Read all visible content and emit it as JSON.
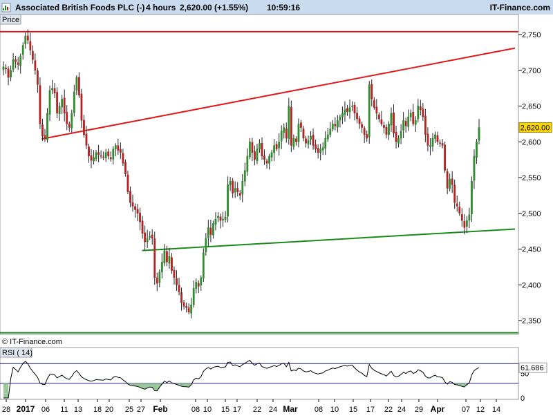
{
  "header": {
    "instrument": "Associated British Foods PLC (-)",
    "interval": "4 hours",
    "change": "2,620.00 (+1.55%)",
    "time": "10:59:16",
    "brand": "IT-Finance.com"
  },
  "panels": {
    "price_label": "Price",
    "copyright": "© IT-Finance.com",
    "rsi_label": "RSI ( 14)"
  },
  "colors": {
    "header_bg": "#c9dbee",
    "up_candle": "#2e8b2e",
    "down_candle": "#b22222",
    "resistance": "#e01818",
    "support": "#1a8a1a",
    "rsi_line": "#000000",
    "rsi_fill": "#9bc89b",
    "rsi_level": "#1a1a80",
    "last_price_tag": "#ffd700"
  },
  "chart_data": [
    {
      "type": "candlestick",
      "title": "Associated British Foods PLC (-)",
      "ylim": [
        2330,
        2770
      ],
      "y_ticks": [
        2350,
        2400,
        2450,
        2500,
        2550,
        2600,
        2650,
        2700,
        2750
      ],
      "y_tick_labels": [
        "2,350",
        "2,400",
        "2,450",
        "2,500",
        "2,550",
        "2,600",
        "2,650",
        "2,700",
        "2,750"
      ],
      "x_tick_labels": [
        "28",
        "2017",
        "06",
        "11",
        "13",
        "18",
        "20",
        "25",
        "27",
        "Feb",
        "08",
        "10",
        "15",
        "17",
        "22",
        "24",
        "Mar",
        "08",
        "10",
        "15",
        "17",
        "22",
        "24",
        "29",
        "Apr",
        "07",
        "12",
        "14"
      ],
      "last_price": 2620.0,
      "last_price_label": "2,620.00",
      "lines": [
        {
          "name": "resistance",
          "from": {
            "period": "2017-01-05",
            "value": 2604
          },
          "to": {
            "period": "2017-04-14",
            "value": 2731
          }
        },
        {
          "name": "support",
          "from": {
            "period": "2017-01-26",
            "value": 2448
          },
          "to": {
            "period": "2017-04-14",
            "value": 2478
          }
        },
        {
          "name": "horizontal-high",
          "value": 2754
        },
        {
          "name": "horizontal-low",
          "value": 2333
        }
      ],
      "closes": [
        2705,
        2702,
        2690,
        2700,
        2715,
        2712,
        2708,
        2720,
        2735,
        2748,
        2742,
        2728,
        2715,
        2700,
        2680,
        2625,
        2608,
        2604,
        2640,
        2672,
        2675,
        2668,
        2640,
        2650,
        2660,
        2640,
        2625,
        2620,
        2640,
        2670,
        2690,
        2665,
        2630,
        2610,
        2595,
        2580,
        2574,
        2578,
        2585,
        2582,
        2580,
        2578,
        2585,
        2580,
        2576,
        2590,
        2595,
        2588,
        2585,
        2570,
        2555,
        2530,
        2515,
        2510,
        2505,
        2500,
        2488,
        2472,
        2460,
        2465,
        2468,
        2465,
        2410,
        2402,
        2418,
        2432,
        2448,
        2432,
        2440,
        2420,
        2410,
        2400,
        2390,
        2375,
        2370,
        2368,
        2362,
        2372,
        2395,
        2404,
        2398,
        2410,
        2445,
        2465,
        2480,
        2470,
        2486,
        2492,
        2496,
        2490,
        2492,
        2495,
        2540,
        2545,
        2528,
        2535,
        2530,
        2525,
        2545,
        2560,
        2580,
        2600,
        2585,
        2575,
        2590,
        2598,
        2580,
        2575,
        2570,
        2580,
        2585,
        2595,
        2590,
        2600,
        2615,
        2620,
        2605,
        2650,
        2595,
        2605,
        2600,
        2625,
        2620,
        2605,
        2598,
        2602,
        2608,
        2595,
        2590,
        2585,
        2590,
        2592,
        2605,
        2610,
        2618,
        2625,
        2622,
        2630,
        2635,
        2640,
        2645,
        2642,
        2648,
        2650,
        2640,
        2632,
        2625,
        2620,
        2610,
        2605,
        2680,
        2660,
        2648,
        2640,
        2632,
        2625,
        2620,
        2610,
        2625,
        2640,
        2612,
        2600,
        2605,
        2615,
        2630,
        2622,
        2635,
        2640,
        2625,
        2630,
        2650,
        2645,
        2635,
        2610,
        2595,
        2595,
        2605,
        2610,
        2600,
        2598,
        2595,
        2560,
        2535,
        2548,
        2540,
        2515,
        2510,
        2500,
        2490,
        2480,
        2490,
        2498,
        2545,
        2580,
        2600,
        2620
      ],
      "rsi": {
        "label": "RSI ( 14)",
        "ylim": [
          0,
          100
        ],
        "levels": [
          30,
          70
        ],
        "y_tick_labels": [
          "0",
          "50"
        ],
        "last_value": 61.686,
        "last_value_label": "61.686"
      }
    }
  ]
}
